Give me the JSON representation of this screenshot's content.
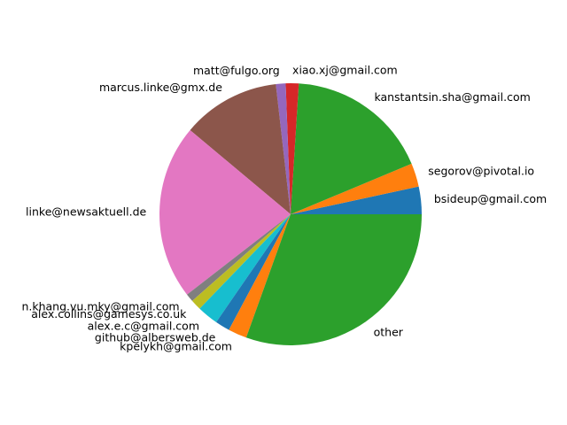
{
  "chart_data": {
    "type": "pie",
    "title": "",
    "start_angle_deg": 0,
    "direction": "counterclockwise",
    "slices": [
      {
        "label": "bsideup@gmail.com",
        "value": 3.4,
        "color": "#1f77b4"
      },
      {
        "label": "segorov@pivotal.io",
        "value": 2.9,
        "color": "#ff7f0e"
      },
      {
        "label": "kanstantsin.sha@gmail.com",
        "value": 17.7,
        "color": "#2ca02c"
      },
      {
        "label": "xiao.xj@gmail.com",
        "value": 1.6,
        "color": "#d62728"
      },
      {
        "label": "matt@fulgo.org",
        "value": 1.2,
        "color": "#9467bd"
      },
      {
        "label": "marcus.linke@gmx.de",
        "value": 12.1,
        "color": "#8c564b"
      },
      {
        "label": "linke@newsaktuell.de",
        "value": 21.6,
        "color": "#e377c2"
      },
      {
        "label": "n.khang.vu.mky@gmail.com",
        "value": 1.0,
        "color": "#7f7f7f"
      },
      {
        "label": "alex.collins@gamesys.co.uk",
        "value": 1.3,
        "color": "#bcbd22"
      },
      {
        "label": "alex.e.c@gmail.com",
        "value": 2.6,
        "color": "#17becf"
      },
      {
        "label": "github@albersweb.de",
        "value": 1.8,
        "color": "#1f77b4"
      },
      {
        "label": "kpelykh@gmail.com",
        "value": 2.3,
        "color": "#ff7f0e"
      },
      {
        "label": "other",
        "value": 30.5,
        "color": "#2ca02c"
      }
    ]
  }
}
